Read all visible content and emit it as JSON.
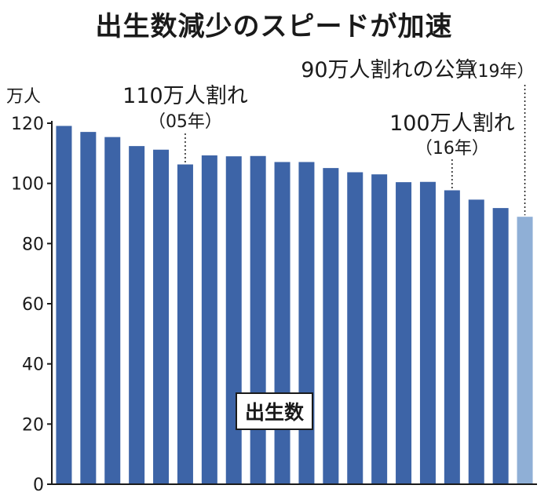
{
  "chart_data": {
    "type": "bar",
    "title": "出生数減少のスピードが加速",
    "unit": "万人",
    "ylim": [
      0,
      120
    ],
    "yticks": [
      0,
      20,
      40,
      60,
      80,
      100,
      120
    ],
    "grid": false,
    "values": [
      119.1,
      117.1,
      115.4,
      112.4,
      111.2,
      106.3,
      109.3,
      109.0,
      109.1,
      107.1,
      107.1,
      105.1,
      103.7,
      103.0,
      100.4,
      100.5,
      97.7,
      94.6,
      91.8,
      88.9
    ],
    "colors": {
      "bar": "#3d64a7",
      "highlight": "#8fafd6"
    },
    "highlight_index": 19,
    "legend": "出生数",
    "annotations": [
      {
        "bar_index": 5,
        "label": "110万人割れ",
        "sub": "（05年）"
      },
      {
        "bar_index": 16,
        "label": "100万人割れ",
        "sub": "（16年）"
      },
      {
        "bar_index": 19,
        "label": "90万人割れの公算",
        "sub": "（19年）"
      }
    ]
  }
}
